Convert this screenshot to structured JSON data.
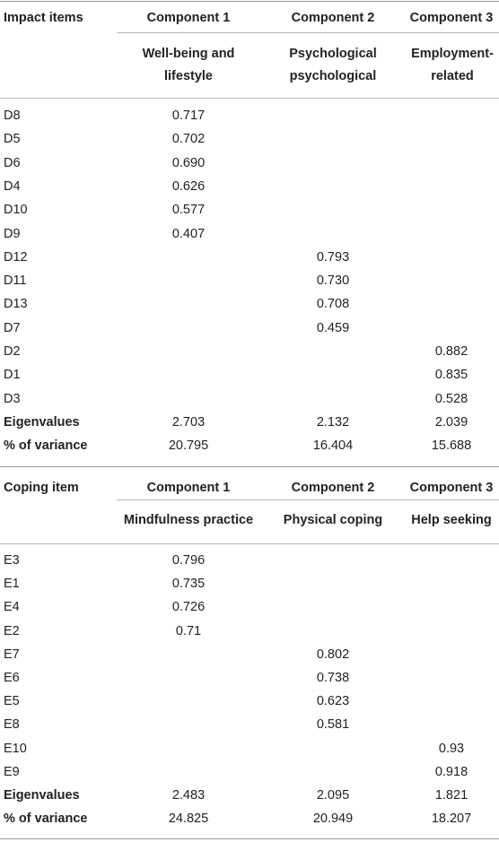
{
  "table1": {
    "header": {
      "item_col": "Impact items",
      "comp1": "Component 1",
      "comp2": "Component 2",
      "comp3": "Component 3",
      "sub1": "Well-being and lifestyle",
      "sub2": "Psychological psychological",
      "sub3": "Employment-related"
    },
    "rows": [
      {
        "item": "D8",
        "c1": "0.717",
        "c2": "",
        "c3": ""
      },
      {
        "item": "D5",
        "c1": "0.702",
        "c2": "",
        "c3": ""
      },
      {
        "item": "D6",
        "c1": "0.690",
        "c2": "",
        "c3": ""
      },
      {
        "item": "D4",
        "c1": "0.626",
        "c2": "",
        "c3": ""
      },
      {
        "item": "D10",
        "c1": "0.577",
        "c2": "",
        "c3": ""
      },
      {
        "item": "D9",
        "c1": "0.407",
        "c2": "",
        "c3": ""
      },
      {
        "item": "D12",
        "c1": "",
        "c2": "0.793",
        "c3": ""
      },
      {
        "item": "D11",
        "c1": "",
        "c2": "0.730",
        "c3": ""
      },
      {
        "item": "D13",
        "c1": "",
        "c2": "0.708",
        "c3": ""
      },
      {
        "item": "D7",
        "c1": "",
        "c2": "0.459",
        "c3": ""
      },
      {
        "item": "D2",
        "c1": "",
        "c2": "",
        "c3": "0.882"
      },
      {
        "item": "D1",
        "c1": "",
        "c2": "",
        "c3": "0.835"
      },
      {
        "item": "D3",
        "c1": "",
        "c2": "",
        "c3": "0.528"
      }
    ],
    "eigen": {
      "label": "Eigenvalues",
      "c1": "2.703",
      "c2": "2.132",
      "c3": "2.039"
    },
    "variance": {
      "label": "% of variance",
      "c1": "20.795",
      "c2": "16.404",
      "c3": "15.688"
    }
  },
  "table2": {
    "header": {
      "item_col": "Coping item",
      "comp1": "Component 1",
      "comp2": "Component 2",
      "comp3": "Component 3",
      "sub1": "Mindfulness practice",
      "sub2": "Physical coping",
      "sub3": "Help seeking"
    },
    "rows": [
      {
        "item": "E3",
        "c1": "0.796",
        "c2": "",
        "c3": ""
      },
      {
        "item": "E1",
        "c1": "0.735",
        "c2": "",
        "c3": ""
      },
      {
        "item": "E4",
        "c1": "0.726",
        "c2": "",
        "c3": ""
      },
      {
        "item": "E2",
        "c1": "0.71",
        "c2": "",
        "c3": ""
      },
      {
        "item": "E7",
        "c1": "",
        "c2": "0.802",
        "c3": ""
      },
      {
        "item": "E6",
        "c1": "",
        "c2": "0.738",
        "c3": ""
      },
      {
        "item": "E5",
        "c1": "",
        "c2": "0.623",
        "c3": ""
      },
      {
        "item": "E8",
        "c1": "",
        "c2": "0.581",
        "c3": ""
      },
      {
        "item": "E10",
        "c1": "",
        "c2": "",
        "c3": "0.93"
      },
      {
        "item": "E9",
        "c1": "",
        "c2": "",
        "c3": "0.918"
      }
    ],
    "eigen": {
      "label": "Eigenvalues",
      "c1": "2.483",
      "c2": "2.095",
      "c3": "1.821"
    },
    "variance": {
      "label": "% of variance",
      "c1": "24.825",
      "c2": "20.949",
      "c3": "18.207"
    }
  }
}
